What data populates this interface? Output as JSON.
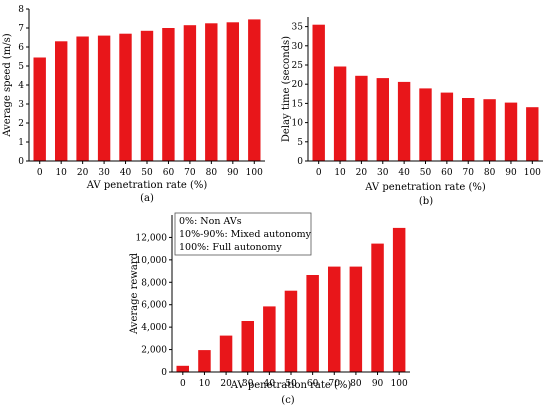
{
  "chart_data": [
    {
      "id": "a",
      "type": "bar",
      "panel_label": "(a)",
      "xlabel": "AV penetration rate (%)",
      "ylabel": "Average speed (m/s)",
      "categories": [
        "0",
        "10",
        "20",
        "30",
        "40",
        "50",
        "60",
        "70",
        "80",
        "90",
        "100"
      ],
      "values": [
        5.45,
        6.3,
        6.55,
        6.6,
        6.7,
        6.85,
        7.0,
        7.15,
        7.25,
        7.3,
        7.45
      ],
      "ylim": [
        0,
        8
      ],
      "yticks": [
        "0",
        "1",
        "2",
        "3",
        "4",
        "5",
        "6",
        "7",
        "8"
      ],
      "grid": false,
      "bar_color": "#e8161a"
    },
    {
      "id": "b",
      "type": "bar",
      "panel_label": "(b)",
      "xlabel": "AV penetration rate (%)",
      "ylabel": "Delay time (seconds)",
      "categories": [
        "0",
        "10",
        "20",
        "30",
        "40",
        "50",
        "60",
        "70",
        "80",
        "90",
        "100"
      ],
      "values": [
        35.5,
        24.6,
        22.2,
        21.6,
        20.6,
        18.9,
        17.8,
        16.4,
        16.1,
        15.2,
        14.0
      ],
      "ylim": [
        0,
        37.5
      ],
      "yticks": [
        "0",
        "5",
        "10",
        "15",
        "20",
        "25",
        "30",
        "35"
      ],
      "grid": false,
      "bar_color": "#e8161a"
    },
    {
      "id": "c",
      "type": "bar",
      "panel_label": "(c)",
      "xlabel": "AV penetration rate (%)",
      "ylabel": "Average reward",
      "categories": [
        "0",
        "10",
        "20",
        "30",
        "40",
        "50",
        "60",
        "70",
        "80",
        "90",
        "100"
      ],
      "values": [
        550,
        1950,
        3250,
        4550,
        5850,
        7250,
        8650,
        9400,
        9400,
        11450,
        12850
      ],
      "ylim": [
        0,
        14000
      ],
      "yticks": [
        "0",
        "2,000",
        "4,000",
        "6,000",
        "8,000",
        "10,000",
        "12,000"
      ],
      "grid": false,
      "bar_color": "#e8161a",
      "legend": [
        "0%: Non AVs",
        "10%-90%: Mixed autonomy",
        "100%: Full autonomy"
      ],
      "legend_position": "top-left"
    }
  ]
}
